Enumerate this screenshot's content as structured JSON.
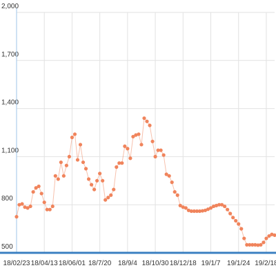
{
  "chart_data": {
    "type": "line",
    "categories": [
      "18/02/23",
      null,
      null,
      null,
      null,
      null,
      null,
      null,
      null,
      null,
      "18/04/13",
      null,
      null,
      null,
      null,
      null,
      null,
      null,
      null,
      null,
      "18/06/01",
      null,
      null,
      null,
      null,
      null,
      null,
      null,
      null,
      null,
      "18/7/20",
      null,
      null,
      null,
      null,
      null,
      null,
      null,
      null,
      null,
      "18/9/4",
      null,
      null,
      null,
      null,
      null,
      null,
      null,
      null,
      null,
      "18/10/30",
      null,
      null,
      null,
      null,
      null,
      null,
      null,
      null,
      null,
      "18/12/18",
      null,
      null,
      null,
      null,
      null,
      null,
      null,
      null,
      null,
      "19/1/7",
      null,
      null,
      null,
      null,
      null,
      null,
      null,
      null,
      null,
      "19/1/24",
      null,
      null,
      null,
      null,
      null,
      null,
      null,
      null,
      null,
      "19/2/18",
      null,
      null,
      null
    ],
    "values": [
      725,
      800,
      805,
      785,
      780,
      790,
      880,
      905,
      915,
      870,
      815,
      770,
      770,
      790,
      980,
      960,
      1065,
      980,
      1045,
      1100,
      1220,
      1240,
      1080,
      1175,
      1065,
      1025,
      960,
      925,
      895,
      950,
      995,
      950,
      830,
      845,
      860,
      895,
      1035,
      1060,
      1060,
      1165,
      1150,
      1090,
      1225,
      1235,
      1240,
      1175,
      1340,
      1320,
      1295,
      1195,
      1100,
      1140,
      1140,
      1110,
      990,
      980,
      940,
      880,
      860,
      795,
      785,
      780,
      765,
      760,
      760,
      760,
      760,
      762,
      765,
      772,
      780,
      790,
      795,
      800,
      800,
      790,
      770,
      745,
      720,
      700,
      680,
      650,
      590,
      550,
      550,
      550,
      550,
      548,
      550,
      565,
      590,
      605,
      615,
      610
    ],
    "color": "#f0845c",
    "ylim": [
      500,
      2000
    ],
    "yticks": [
      500,
      800,
      {
        "value": 1100,
        "label": "1,100"
      },
      {
        "value": 1400,
        "label": "1,400"
      },
      {
        "value": 1700,
        "label": "1,700"
      },
      {
        "value": 2000,
        "label": "2,000"
      }
    ],
    "grid": true
  }
}
